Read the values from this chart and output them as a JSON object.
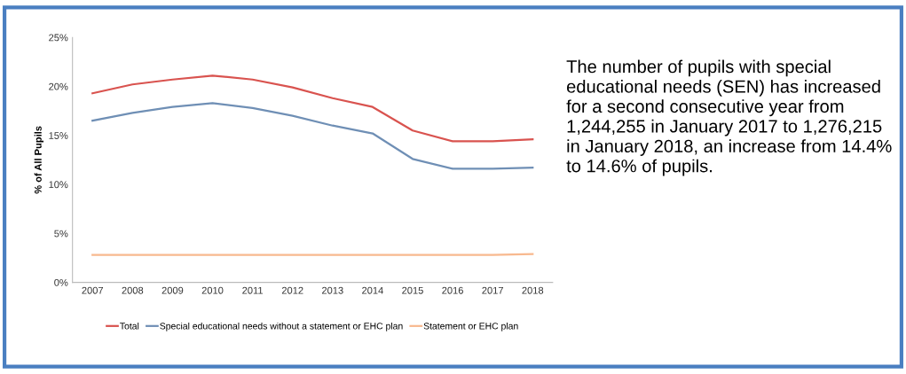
{
  "chart_data": {
    "type": "line",
    "ylabel": "% of All Pupils",
    "categories": [
      "2007",
      "2008",
      "2009",
      "2010",
      "2011",
      "2012",
      "2013",
      "2014",
      "2015",
      "2016",
      "2017",
      "2018"
    ],
    "series": [
      {
        "name": "Total",
        "color": "#d9534f",
        "values": [
          19.3,
          20.2,
          20.7,
          21.1,
          20.7,
          19.9,
          18.8,
          17.9,
          15.5,
          14.4,
          14.4,
          14.6
        ]
      },
      {
        "name": "Special educational needs without a statement or EHC plan",
        "color": "#6f8fb5",
        "values": [
          16.5,
          17.3,
          17.9,
          18.3,
          17.8,
          17.0,
          16.0,
          15.2,
          12.6,
          11.6,
          11.6,
          11.7
        ]
      },
      {
        "name": "Statement or EHC plan",
        "color": "#f8b98f",
        "values": [
          2.8,
          2.8,
          2.8,
          2.8,
          2.8,
          2.8,
          2.8,
          2.8,
          2.8,
          2.8,
          2.8,
          2.9
        ]
      }
    ],
    "ylim": [
      0,
      25
    ],
    "yticks": [
      {
        "value": 0,
        "label": "0%"
      },
      {
        "value": 5,
        "label": "5%"
      },
      {
        "value": 10,
        "label": "10%"
      },
      {
        "value": 15,
        "label": "15%"
      },
      {
        "value": 20,
        "label": "20%"
      },
      {
        "value": 25,
        "label": "25%"
      }
    ],
    "grid": false,
    "legend": "bottom",
    "marker": "none",
    "line_style": "solid",
    "annotations": [
      "The number of pupils with special educational needs (SEN) has increased for a second consecutive year from 1,244,255 in January 2017 to 1,276,215 in January 2018, an increase from 14.4% to 14.6% of pupils."
    ]
  }
}
